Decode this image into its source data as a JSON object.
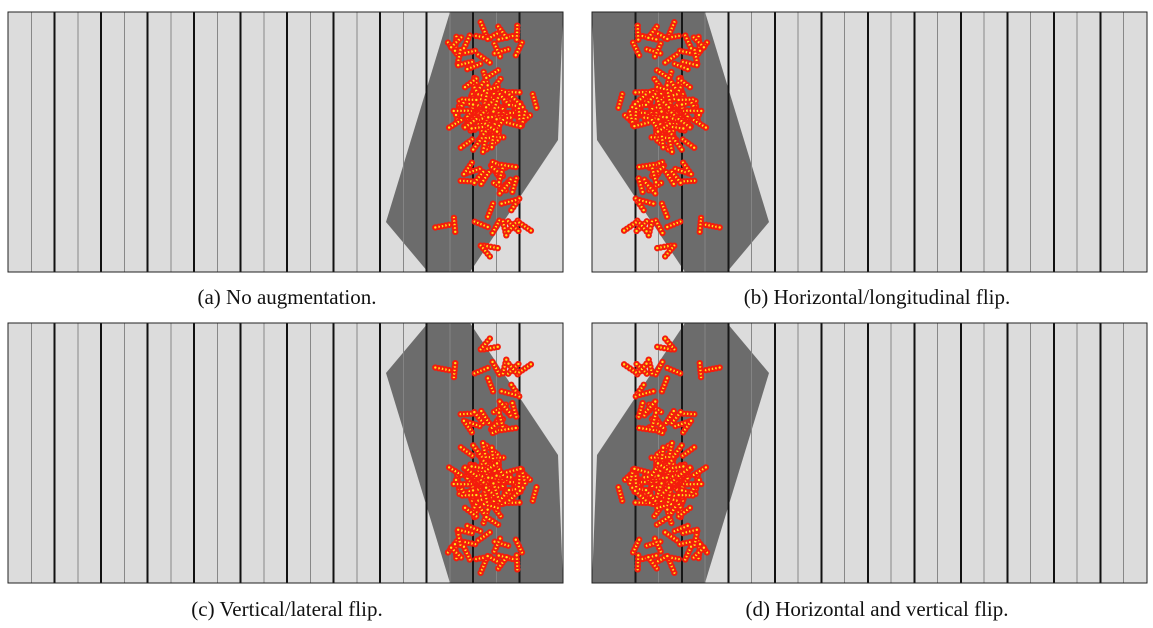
{
  "figure": {
    "captions": [
      "(a) No augmentation.",
      "(b) Horizontal/longitudinal flip.",
      "(c) Vertical/lateral flip.",
      "(d) Horizontal and vertical flip."
    ]
  }
}
